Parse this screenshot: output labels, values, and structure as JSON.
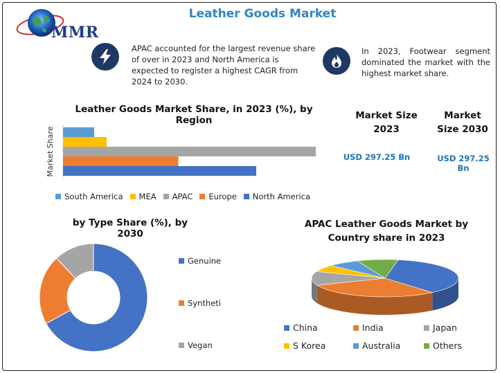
{
  "title": "Leather Goods Market",
  "logo": {
    "text": "MMR"
  },
  "highlights": [
    {
      "icon": "lightning-icon",
      "text": "APAC accounted for the largest revenue share of over in 2023 and North America is expected to register a highest CAGR from 2024 to 2030."
    },
    {
      "icon": "flame-icon",
      "text": "In 2023, Footwear segment dominated the market with the highest market share."
    }
  ],
  "market_size": {
    "label_2023": "Market Size 2023",
    "value_2023": "USD 297.25 Bn",
    "label_2030": "Market Size 2030",
    "value_2030": "USD 297.25 Bn"
  },
  "chart_data": [
    {
      "type": "bar",
      "orientation": "horizontal",
      "title": "Leather Goods Market Share, in 2023 (%), by Region",
      "ylabel": "Market Share",
      "categories": [
        "South America",
        "MEA",
        "APAC",
        "Europe",
        "North America"
      ],
      "values": [
        5,
        7,
        42,
        18.5,
        31
      ],
      "xlim": [
        0,
        50
      ],
      "colors": [
        "#5b9bd5",
        "#ffc000",
        "#a5a5a5",
        "#ed7d31",
        "#4472c4"
      ],
      "legend_position": "bottom"
    },
    {
      "type": "pie",
      "variant": "donut",
      "title": "by Type Share (%), by 2030",
      "labels": [
        "Genuine",
        "Syntheti",
        "Vegan"
      ],
      "values": [
        67,
        21,
        12
      ],
      "colors": [
        "#4472c4",
        "#ed7d31",
        "#a5a5a5"
      ],
      "legend_position": "right"
    },
    {
      "type": "pie",
      "variant": "3d",
      "title": "APAC  Leather Goods Market by Country share in 2023",
      "labels": [
        "China",
        "India",
        "Japan",
        "S Korea",
        "Australia",
        "Others"
      ],
      "values": [
        36,
        30,
        12,
        6,
        7,
        9
      ],
      "colors": [
        "#4472c4",
        "#ed7d31",
        "#a5a5a5",
        "#ffc000",
        "#5b9bd5",
        "#70ad47"
      ],
      "legend_position": "bottom"
    }
  ]
}
